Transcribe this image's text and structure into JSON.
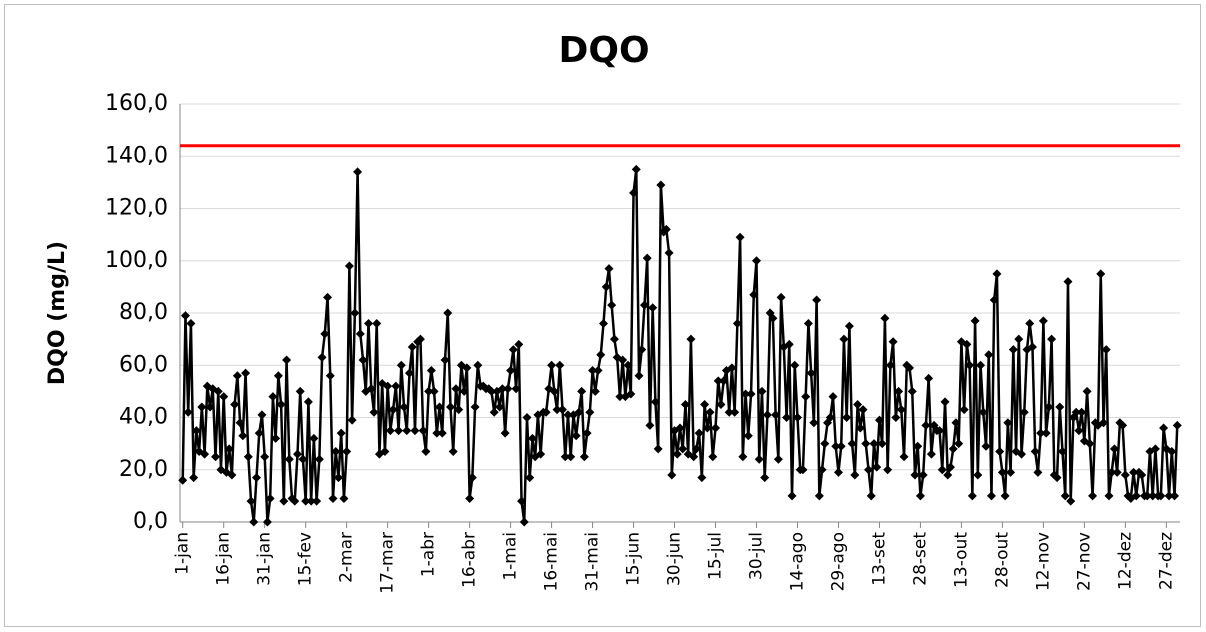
{
  "chart_data": {
    "type": "line",
    "title": "DQO",
    "y_label": "DQO (mg/L)",
    "x": [
      1,
      2,
      3,
      4,
      5,
      6,
      7,
      8,
      9,
      10,
      11,
      12,
      13,
      14,
      15,
      16,
      17,
      18,
      19,
      20,
      21,
      22,
      23,
      24,
      25,
      26,
      27,
      28,
      29,
      30,
      31,
      32,
      33,
      34,
      35,
      36,
      37,
      38,
      39,
      40,
      41,
      42,
      43,
      44,
      45,
      46,
      47,
      48,
      49,
      50,
      51,
      52,
      53,
      54,
      55,
      56,
      57,
      58,
      59,
      60,
      61,
      62,
      63,
      64,
      65,
      66,
      67,
      68,
      69,
      70,
      71,
      72,
      73,
      74,
      75,
      76,
      77,
      78,
      79,
      80,
      81,
      82,
      83,
      84,
      85,
      86,
      87,
      88,
      89,
      90,
      91,
      92,
      93,
      94,
      95,
      96,
      97,
      98,
      99,
      100,
      101,
      102,
      103,
      104,
      105,
      106,
      107,
      108,
      109,
      110,
      111,
      112,
      113,
      114,
      115,
      116,
      117,
      118,
      119,
      120,
      121,
      122,
      123,
      124,
      125,
      126,
      127,
      128,
      129,
      130,
      131,
      132,
      133,
      134,
      135,
      136,
      137,
      138,
      139,
      140,
      141,
      142,
      143,
      144,
      145,
      146,
      147,
      148,
      149,
      150,
      151,
      152,
      153,
      154,
      155,
      156,
      157,
      158,
      159,
      160,
      161,
      162,
      163,
      164,
      165,
      166,
      167,
      168,
      169,
      170,
      171,
      172,
      173,
      174,
      175,
      176,
      177,
      178,
      179,
      180,
      181,
      182,
      183,
      184,
      185,
      186,
      187,
      188,
      189,
      190,
      191,
      192,
      193,
      194,
      195,
      196,
      197,
      198,
      199,
      200,
      201,
      202,
      203,
      204,
      205,
      206,
      207,
      208,
      209,
      210,
      211,
      212,
      213,
      214,
      215,
      216,
      217,
      218,
      219,
      220,
      221,
      222,
      223,
      224,
      225,
      226,
      227,
      228,
      229,
      230,
      231,
      232,
      233,
      234,
      235,
      236,
      237,
      238,
      239,
      240,
      241,
      242,
      243,
      244,
      245,
      246,
      247,
      248,
      249,
      250,
      251,
      252,
      253,
      254,
      255,
      256,
      257,
      258,
      259,
      260,
      261,
      262,
      263,
      264,
      265,
      266,
      267,
      268,
      269,
      270,
      271,
      272,
      273,
      274,
      275,
      276,
      277,
      278,
      279,
      280,
      281,
      282,
      283,
      284,
      285,
      286,
      287,
      288,
      289,
      290,
      291,
      292,
      293,
      294,
      295,
      296,
      297,
      298,
      299,
      300,
      301,
      302,
      303,
      304,
      305,
      306,
      307,
      308,
      309,
      310,
      311,
      312,
      313,
      314,
      315,
      316,
      317,
      318,
      319,
      320,
      321,
      322,
      323,
      324,
      325,
      326,
      327,
      328,
      329,
      330,
      331,
      332,
      333,
      334,
      335,
      336,
      337,
      338,
      339,
      340,
      341,
      342,
      343,
      344,
      345,
      346,
      347,
      348,
      349,
      350,
      351,
      352,
      353,
      354,
      355,
      356,
      357,
      358,
      359,
      360,
      361,
      362,
      363,
      364,
      365
    ],
    "values": [
      16,
      79,
      42,
      76,
      17,
      35,
      27,
      44,
      26,
      52,
      44,
      51,
      25,
      50,
      20,
      48,
      19,
      28,
      18,
      45,
      56,
      38,
      33,
      57,
      25,
      8,
      0,
      17,
      34,
      41,
      25,
      0,
      9,
      48,
      32,
      56,
      45,
      8,
      62,
      24,
      9,
      8,
      26,
      50,
      24,
      8,
      46,
      8,
      32,
      8,
      24,
      63,
      72,
      86,
      56,
      9,
      27,
      17,
      34,
      9,
      27,
      98,
      39,
      80,
      134,
      72,
      62,
      50,
      76,
      51,
      42,
      76,
      26,
      53,
      27,
      52,
      35,
      43,
      52,
      35,
      60,
      44,
      35,
      57,
      67,
      35,
      69,
      70,
      35,
      27,
      50,
      58,
      50,
      34,
      44,
      34,
      62,
      80,
      44,
      27,
      51,
      43,
      60,
      50,
      59,
      9,
      17,
      44,
      60,
      52,
      52,
      51,
      51,
      50,
      42,
      50,
      44,
      51,
      34,
      51,
      58,
      66,
      51,
      68,
      8,
      0,
      40,
      17,
      32,
      25,
      41,
      26,
      42,
      42,
      51,
      60,
      50,
      43,
      60,
      43,
      25,
      41,
      25,
      41,
      33,
      42,
      50,
      25,
      34,
      42,
      58,
      50,
      58,
      64,
      76,
      90,
      97,
      83,
      70,
      63,
      48,
      62,
      48,
      60,
      49,
      126,
      135,
      56,
      66,
      83,
      101,
      37,
      82,
      46,
      28,
      129,
      111,
      112,
      103,
      18,
      35,
      26,
      36,
      28,
      45,
      26,
      70,
      25,
      28,
      34,
      17,
      45,
      36,
      42,
      25,
      36,
      54,
      45,
      54,
      58,
      42,
      59,
      42,
      76,
      109,
      25,
      49,
      33,
      49,
      87,
      100,
      24,
      50,
      17,
      41,
      80,
      78,
      41,
      24,
      86,
      67,
      40,
      68,
      10,
      60,
      40,
      20,
      20,
      48,
      76,
      57,
      38,
      85,
      10,
      20,
      30,
      38,
      40,
      48,
      29,
      19,
      29,
      70,
      40,
      75,
      30,
      18,
      45,
      36,
      43,
      30,
      20,
      10,
      30,
      21,
      39,
      30,
      78,
      20,
      60,
      69,
      40,
      50,
      43,
      25,
      60,
      59,
      50,
      18,
      29,
      10,
      18,
      37,
      55,
      26,
      37,
      35,
      35,
      20,
      46,
      18,
      21,
      28,
      38,
      30,
      69,
      43,
      68,
      60,
      10,
      77,
      18,
      60,
      42,
      29,
      64,
      10,
      85,
      95,
      27,
      19,
      10,
      38,
      19,
      66,
      27,
      70,
      26,
      42,
      66,
      76,
      67,
      27,
      19,
      34,
      77,
      34,
      44,
      70,
      18,
      17,
      44,
      27,
      10,
      92,
      8,
      40,
      42,
      35,
      42,
      31,
      50,
      30,
      10,
      38,
      37,
      95,
      38,
      66,
      10,
      19,
      28,
      19,
      38,
      37,
      18,
      10,
      9,
      19,
      10,
      19,
      18,
      10,
      10,
      27,
      10,
      28,
      10,
      10,
      36,
      28,
      10,
      27,
      10,
      37
    ],
    "color": "#000000",
    "reference_line": {
      "value": 144,
      "color": "#ff0000"
    },
    "xlim": [
      0,
      366
    ],
    "xticks": [
      {
        "value": 1,
        "label": "1-jan"
      },
      {
        "value": 16,
        "label": "16-jan"
      },
      {
        "value": 31,
        "label": "31-jan"
      },
      {
        "value": 46,
        "label": "15-fev"
      },
      {
        "value": 61,
        "label": "2-mar"
      },
      {
        "value": 76,
        "label": "17-mar"
      },
      {
        "value": 91,
        "label": "1-abr"
      },
      {
        "value": 106,
        "label": "16-abr"
      },
      {
        "value": 121,
        "label": "1-mai"
      },
      {
        "value": 136,
        "label": "16-mai"
      },
      {
        "value": 151,
        "label": "31-mai"
      },
      {
        "value": 166,
        "label": "15-jun"
      },
      {
        "value": 181,
        "label": "30-jun"
      },
      {
        "value": 196,
        "label": "15-jul"
      },
      {
        "value": 211,
        "label": "30-jul"
      },
      {
        "value": 226,
        "label": "14-ago"
      },
      {
        "value": 241,
        "label": "29-ago"
      },
      {
        "value": 256,
        "label": "13-set"
      },
      {
        "value": 271,
        "label": "28-set"
      },
      {
        "value": 286,
        "label": "13-out"
      },
      {
        "value": 301,
        "label": "28-out"
      },
      {
        "value": 316,
        "label": "12-nov"
      },
      {
        "value": 331,
        "label": "27-nov"
      },
      {
        "value": 346,
        "label": "12-dez"
      },
      {
        "value": 361,
        "label": "27-dez"
      }
    ],
    "ylim": [
      0,
      160
    ],
    "yticks": [
      {
        "value": 0,
        "label": "0,0"
      },
      {
        "value": 20,
        "label": "20,0"
      },
      {
        "value": 40,
        "label": "40,0"
      },
      {
        "value": 60,
        "label": "60,0"
      },
      {
        "value": 80,
        "label": "80,0"
      },
      {
        "value": 100,
        "label": "100,0"
      },
      {
        "value": 120,
        "label": "120,0"
      },
      {
        "value": 140,
        "label": "140,0"
      },
      {
        "value": 160,
        "label": "160,0"
      }
    ],
    "grid": true
  }
}
